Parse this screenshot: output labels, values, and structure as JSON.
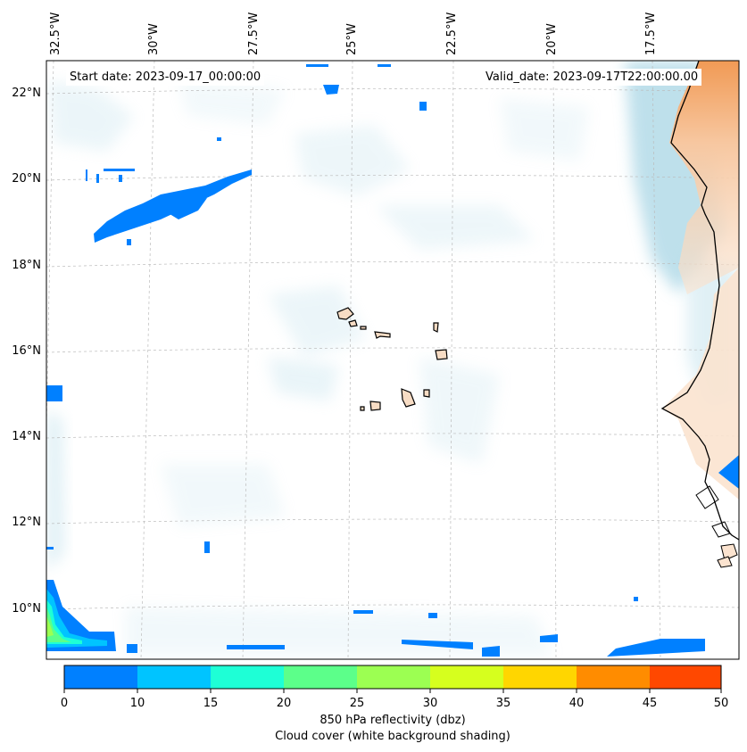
{
  "map": {
    "start_date": "Start date: 2023-09-17_00:00:00",
    "valid_date": "Valid_date: 2023-09-17T22:00:00.00",
    "lon_labels": [
      "32.5°W",
      "30°W",
      "27.5°W",
      "25°W",
      "22.5°W",
      "20°W",
      "17.5°W"
    ],
    "lat_labels": [
      "22°N",
      "20°N",
      "18°N",
      "16°N",
      "14°N",
      "12°N",
      "10°N"
    ],
    "colors": {
      "coastline": "#000000",
      "land": "#f7dcc4",
      "cloud": "#a9d6e5",
      "gridline": "#bbbbbb"
    }
  },
  "colorbar": {
    "ticks": [
      "0",
      "10",
      "15",
      "20",
      "25",
      "30",
      "35",
      "40",
      "45",
      "50"
    ],
    "colors": [
      "#0080ff",
      "#00c4ff",
      "#1effd6",
      "#5cff8a",
      "#9cff52",
      "#d6ff1e",
      "#ffd600",
      "#ff8c00",
      "#ff4800"
    ],
    "label": "850 hPa reflectivity (dbz)",
    "sublabel": "Cloud cover (white background shading)"
  }
}
